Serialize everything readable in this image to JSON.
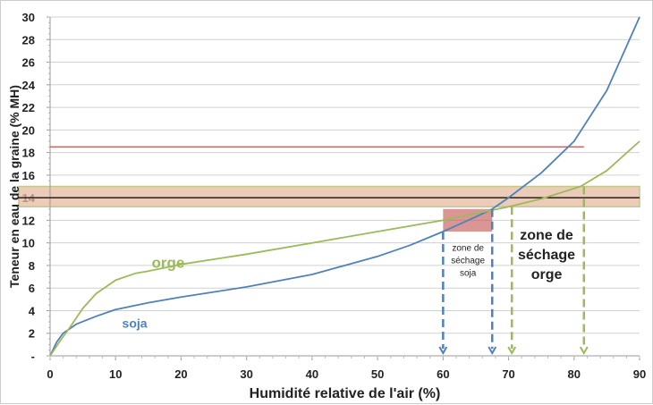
{
  "chart_data": {
    "type": "line",
    "xlabel": "Humidité relative de l'air (%)",
    "ylabel": "Teneur en eau de la graine (% MH)",
    "xlim": [
      0,
      90
    ],
    "ylim": [
      0,
      30
    ],
    "xticks": [
      0,
      10,
      20,
      30,
      40,
      50,
      60,
      70,
      80,
      90
    ],
    "yticks": [
      "-",
      "2",
      "4",
      "6",
      "8",
      "10",
      "12",
      "14",
      "16",
      "18",
      "20",
      "22",
      "24",
      "26",
      "28",
      "30"
    ],
    "grid": "horizontal",
    "series": [
      {
        "name": "soja",
        "color": "#4f81bd",
        "points": [
          [
            0,
            0
          ],
          [
            1,
            1.2
          ],
          [
            2,
            2
          ],
          [
            4,
            2.8
          ],
          [
            7,
            3.5
          ],
          [
            10,
            4.1
          ],
          [
            15,
            4.7
          ],
          [
            20,
            5.2
          ],
          [
            30,
            6.1
          ],
          [
            40,
            7.2
          ],
          [
            50,
            8.8
          ],
          [
            55,
            9.8
          ],
          [
            60,
            11
          ],
          [
            65,
            12.3
          ],
          [
            67.5,
            13
          ],
          [
            70,
            14
          ],
          [
            75,
            16.2
          ],
          [
            80,
            19
          ],
          [
            85,
            23.5
          ],
          [
            90,
            30
          ]
        ]
      },
      {
        "name": "orge",
        "color": "#9bbb59",
        "points": [
          [
            0,
            0
          ],
          [
            1.5,
            1.3
          ],
          [
            3,
            2.5
          ],
          [
            5,
            4.2
          ],
          [
            7,
            5.5
          ],
          [
            10,
            6.7
          ],
          [
            13,
            7.3
          ],
          [
            15,
            7.5
          ],
          [
            20,
            8.1
          ],
          [
            30,
            9
          ],
          [
            40,
            10
          ],
          [
            50,
            11
          ],
          [
            60,
            12
          ],
          [
            67.5,
            12.9
          ],
          [
            70,
            13.2
          ],
          [
            75,
            13.9
          ],
          [
            81,
            15
          ],
          [
            85,
            16.4
          ],
          [
            90,
            19
          ]
        ]
      }
    ],
    "reference_lines": [
      {
        "y": 18.5,
        "x_end": 81.5,
        "color": "#c0504d"
      },
      {
        "y": 14,
        "color": "#000000"
      }
    ],
    "band": {
      "y_range": [
        13.2,
        15
      ],
      "color": "#e6b9a0"
    },
    "soja_zone_rect": {
      "x_range": [
        60,
        67.5
      ],
      "y_range": [
        11,
        13
      ],
      "color": "#c0504d"
    },
    "arrows": [
      {
        "x": 60,
        "from_y": 11,
        "color": "#4f81bd"
      },
      {
        "x": 67.5,
        "from_y": 13,
        "color": "#4f81bd"
      },
      {
        "x": 70.5,
        "from_y": 13.2,
        "color": "#9bbb59"
      },
      {
        "x": 81.5,
        "from_y": 15,
        "color": "#9bbb59"
      }
    ],
    "annotations": {
      "orge": "orge",
      "soja": "soja",
      "zone_soja": [
        "zone de",
        "séchage",
        "soja"
      ],
      "zone_orge": [
        "zone de",
        "séchage",
        "orge"
      ]
    }
  }
}
